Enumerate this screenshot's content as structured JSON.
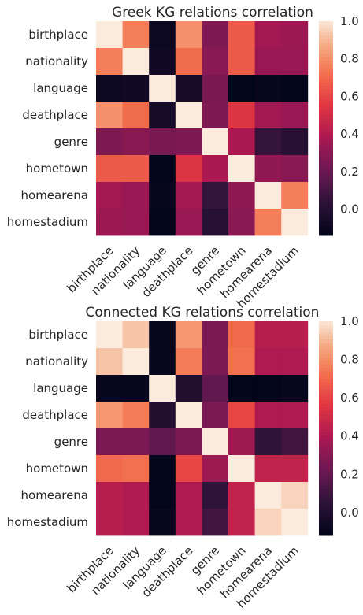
{
  "chart_data": [
    {
      "type": "heatmap",
      "title": "Greek KG relations correlation",
      "rows": [
        "birthplace",
        "nationality",
        "language",
        "deathplace",
        "genre",
        "hometown",
        "homearena",
        "homestadium"
      ],
      "cols": [
        "birthplace",
        "nationality",
        "language",
        "deathplace",
        "genre",
        "hometown",
        "homearena",
        "homestadium"
      ],
      "values": [
        [
          1.0,
          0.75,
          -0.1,
          0.8,
          0.25,
          0.65,
          0.35,
          0.33
        ],
        [
          0.75,
          1.0,
          -0.08,
          0.7,
          0.28,
          0.65,
          0.32,
          0.32
        ],
        [
          -0.1,
          -0.08,
          1.0,
          -0.07,
          0.23,
          -0.14,
          -0.12,
          -0.14
        ],
        [
          0.8,
          0.7,
          -0.07,
          1.0,
          0.25,
          0.53,
          0.35,
          0.32
        ],
        [
          0.25,
          0.28,
          0.23,
          0.25,
          1.0,
          0.38,
          0.05,
          0.0
        ],
        [
          0.65,
          0.65,
          -0.14,
          0.53,
          0.38,
          1.0,
          0.3,
          0.28
        ],
        [
          0.35,
          0.32,
          -0.12,
          0.35,
          0.05,
          0.3,
          1.0,
          0.75
        ],
        [
          0.33,
          0.32,
          -0.14,
          0.32,
          0.0,
          0.28,
          0.75,
          1.0
        ]
      ],
      "colorbar": {
        "min": -0.14,
        "max": 1.0,
        "ticks": [
          "1.0",
          "0.8",
          "0.6",
          "0.4",
          "0.2",
          "0.0"
        ],
        "tick_values": [
          1.0,
          0.8,
          0.6,
          0.4,
          0.2,
          0.0
        ]
      }
    },
    {
      "type": "heatmap",
      "title": "Connected KG relations correlation",
      "rows": [
        "birthplace",
        "nationality",
        "language",
        "deathplace",
        "genre",
        "hometown",
        "homearena",
        "homestadium"
      ],
      "cols": [
        "birthplace",
        "nationality",
        "language",
        "deathplace",
        "genre",
        "hometown",
        "homearena",
        "homestadium"
      ],
      "values": [
        [
          1.0,
          0.92,
          -0.1,
          0.82,
          0.25,
          0.7,
          0.42,
          0.42
        ],
        [
          0.92,
          1.0,
          -0.1,
          0.75,
          0.25,
          0.72,
          0.4,
          0.4
        ],
        [
          -0.1,
          -0.1,
          1.0,
          0.0,
          0.18,
          -0.12,
          -0.12,
          -0.1
        ],
        [
          0.82,
          0.75,
          0.0,
          1.0,
          0.25,
          0.6,
          0.4,
          0.4
        ],
        [
          0.25,
          0.25,
          0.18,
          0.25,
          1.0,
          0.35,
          0.05,
          0.1
        ],
        [
          0.7,
          0.72,
          -0.12,
          0.6,
          0.35,
          1.0,
          0.45,
          0.45
        ],
        [
          0.42,
          0.4,
          -0.12,
          0.4,
          0.05,
          0.45,
          1.0,
          0.95
        ],
        [
          0.42,
          0.4,
          -0.1,
          0.4,
          0.1,
          0.45,
          0.95,
          1.0
        ]
      ],
      "colorbar": {
        "min": -0.12,
        "max": 1.0,
        "ticks": [
          "1.0",
          "0.8",
          "0.6",
          "0.4",
          "0.2",
          "0.0"
        ],
        "tick_values": [
          1.0,
          0.8,
          0.6,
          0.4,
          0.2,
          0.0
        ]
      }
    }
  ]
}
